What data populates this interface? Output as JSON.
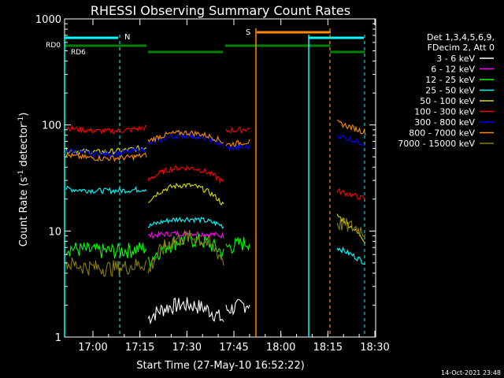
{
  "chart_data": {
    "type": "line",
    "title": "RHESSI Observing Summary Count Rates",
    "xlabel": "Start Time (27-May-10 16:52:22)",
    "ylabel": "Count Rate (s",
    "ylabel_sup1": "-1",
    "ylabel_mid": " detector",
    "ylabel_sup2": "-1",
    "ylabel_end": ")",
    "yscale": "log",
    "ylim": [
      1,
      1000
    ],
    "xlim_min": [
      0,
      98
    ],
    "x_ticks": [
      {
        "m": 8,
        "label": "17:00"
      },
      {
        "m": 23,
        "label": "17:15"
      },
      {
        "m": 38,
        "label": "17:30"
      },
      {
        "m": 53,
        "label": "17:45"
      },
      {
        "m": 68,
        "label": "18:00"
      },
      {
        "m": 83,
        "label": "18:15"
      },
      {
        "m": 98,
        "label": "18:30"
      }
    ],
    "y_ticks": [
      {
        "v": 1,
        "label": "1"
      },
      {
        "v": 10,
        "label": "10"
      },
      {
        "v": 100,
        "label": "100"
      },
      {
        "v": 1000,
        "label": "1000"
      }
    ],
    "legend_header": [
      "Det 1,3,4,5,6,9,",
      "FDecim 2, Att 0"
    ],
    "legend_position": "right",
    "series": [
      {
        "name": "3 - 6 keV",
        "color": "#ffffff"
      },
      {
        "name": "6 - 12 keV",
        "color": "#ff00ff"
      },
      {
        "name": "12 - 25 keV",
        "color": "#00ff00"
      },
      {
        "name": "25 - 50 keV",
        "color": "#00ffff"
      },
      {
        "name": "50 - 100 keV",
        "color": "#dddd00"
      },
      {
        "name": "100 - 300 keV",
        "color": "#ff0000"
      },
      {
        "name": "300 - 800 keV",
        "color": "#0000ff"
      },
      {
        "name": "800 - 7000 keV",
        "color": "#ff8c00"
      },
      {
        "name": "7000 - 15000 keV",
        "color": "#8b7d00"
      }
    ],
    "annotations": {
      "night_label": "N",
      "saa_label": "S",
      "rd0_label": "RD0",
      "rd6_label": "RD6"
    },
    "timestamp": "14-Oct-2021 23:48"
  }
}
